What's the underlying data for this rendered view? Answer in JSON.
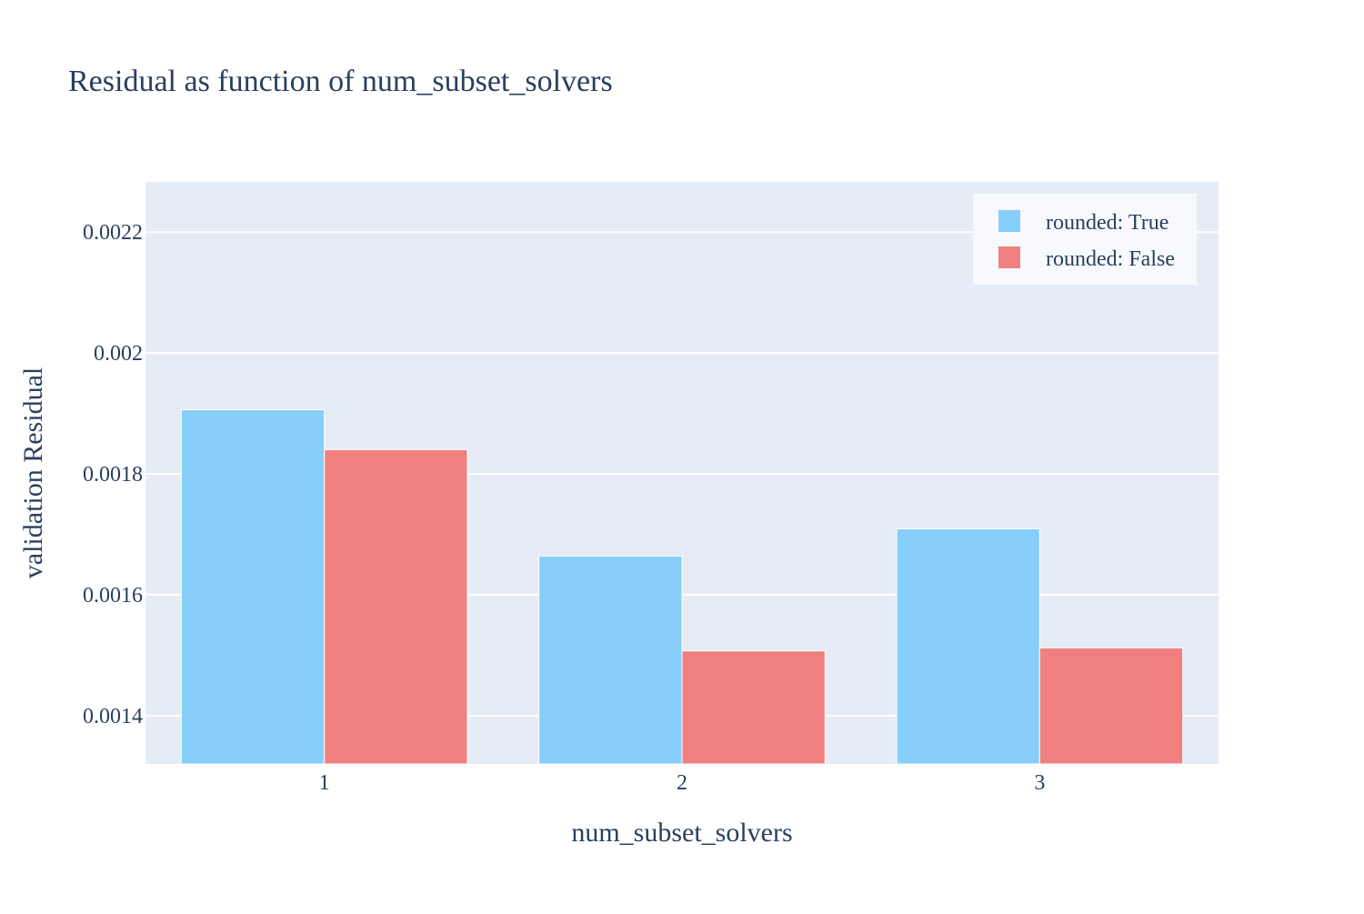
{
  "chart_data": {
    "type": "bar",
    "title": "Residual as function of num_subset_solvers",
    "xlabel": "num_subset_solvers",
    "ylabel": "validation Residual",
    "categories": [
      "1",
      "2",
      "3"
    ],
    "series": [
      {
        "name": "rounded: True",
        "color": "#87cefa",
        "values": [
          0.001906,
          0.001664,
          0.001709
        ]
      },
      {
        "name": "rounded: False",
        "color": "#f08080",
        "values": [
          0.00184,
          0.001507,
          0.001512
        ]
      }
    ],
    "ylim": [
      0.00132,
      0.002283
    ],
    "yticks": [
      0.0014,
      0.0016,
      0.0018,
      0.002,
      0.0022
    ],
    "ytick_labels": [
      "0.0014",
      "0.0016",
      "0.0018",
      "0.002",
      "0.0022"
    ],
    "grid": true,
    "legend_position": "top-right",
    "colors": {
      "plot_background": "#e5ecf6",
      "gridline": "#ffffff",
      "text": "#2a3f5f",
      "legend_background": "#f8f9fc"
    }
  }
}
